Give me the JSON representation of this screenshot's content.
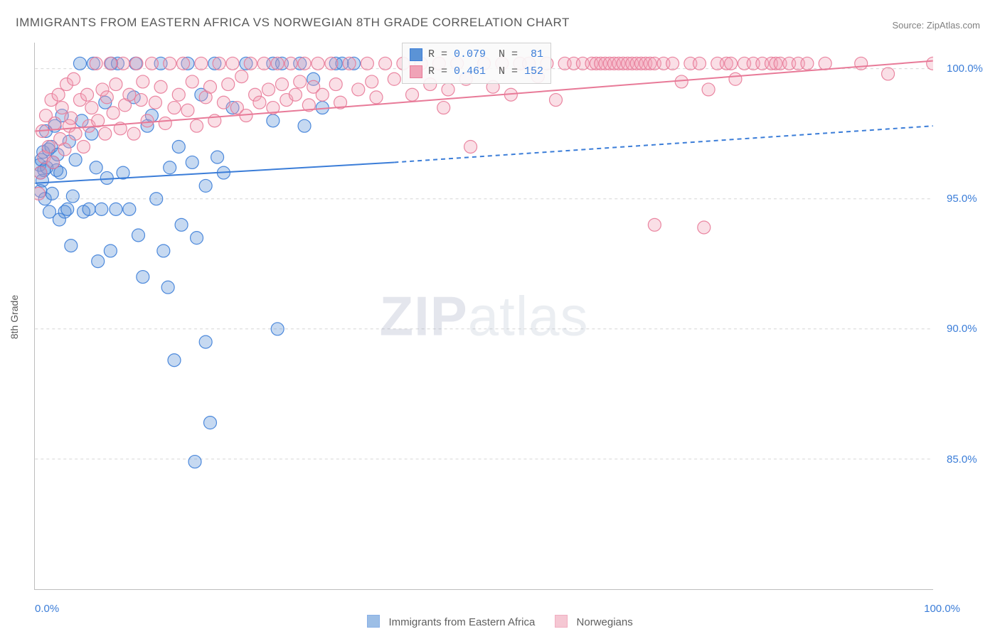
{
  "title": "IMMIGRANTS FROM EASTERN AFRICA VS NORWEGIAN 8TH GRADE CORRELATION CHART",
  "source": "Source: ZipAtlas.com",
  "ylabel": "8th Grade",
  "watermark_bold": "ZIP",
  "watermark_rest": "atlas",
  "chart": {
    "type": "scatter",
    "background_color": "#ffffff",
    "grid_color": "#d6d6d6",
    "axis_color": "#bdbdbd",
    "x_domain": [
      0,
      100
    ],
    "y_domain": [
      80,
      101
    ],
    "x_ticks": [
      0,
      8.7,
      17.8,
      26.7,
      35.6,
      44.5,
      53.3,
      62.2,
      71.1,
      80.0,
      88.9,
      100
    ],
    "y_ticks": [
      85.0,
      90.0,
      95.0,
      100.0
    ],
    "y_tick_labels": [
      "85.0%",
      "90.0%",
      "95.0%",
      "100.0%"
    ],
    "x_min_label": "0.0%",
    "x_max_label": "100.0%",
    "marker_radius": 9,
    "marker_fill_opacity": 0.35,
    "marker_stroke_opacity": 0.9,
    "marker_stroke_width": 1.2,
    "trend_line_width": 2,
    "series": [
      {
        "name": "Immigrants from Eastern Africa",
        "color": "#5b93d6",
        "stroke": "#3b7dd8",
        "R": "0.079",
        "N": "81",
        "trend": {
          "x1": 0,
          "y1": 95.6,
          "x2_solid": 40,
          "y2_solid": 96.4,
          "x2": 100,
          "y2": 97.8
        },
        "points": [
          [
            0.5,
            96.3
          ],
          [
            0.6,
            96.0
          ],
          [
            0.8,
            95.7
          ],
          [
            0.7,
            96.5
          ],
          [
            1.0,
            96.1
          ],
          [
            0.6,
            95.3
          ],
          [
            0.9,
            96.8
          ],
          [
            1.3,
            96.2
          ],
          [
            1.1,
            95.0
          ],
          [
            1.5,
            96.9
          ],
          [
            1.2,
            97.6
          ],
          [
            1.8,
            97.0
          ],
          [
            1.6,
            94.5
          ],
          [
            2.0,
            96.4
          ],
          [
            2.4,
            96.1
          ],
          [
            1.9,
            95.2
          ],
          [
            2.2,
            97.8
          ],
          [
            2.7,
            94.2
          ],
          [
            2.5,
            96.7
          ],
          [
            3.0,
            98.2
          ],
          [
            3.3,
            94.5
          ],
          [
            2.8,
            96.0
          ],
          [
            3.6,
            94.6
          ],
          [
            3.8,
            97.2
          ],
          [
            4.0,
            93.2
          ],
          [
            4.5,
            96.5
          ],
          [
            4.2,
            95.1
          ],
          [
            5.0,
            100.2
          ],
          [
            5.4,
            94.5
          ],
          [
            5.2,
            98.0
          ],
          [
            6.0,
            94.6
          ],
          [
            6.3,
            97.5
          ],
          [
            6.8,
            96.2
          ],
          [
            6.5,
            100.2
          ],
          [
            7.4,
            94.6
          ],
          [
            7.0,
            92.6
          ],
          [
            7.8,
            98.7
          ],
          [
            8.0,
            95.8
          ],
          [
            8.5,
            100.2
          ],
          [
            8.4,
            93.0
          ],
          [
            9.0,
            94.6
          ],
          [
            9.2,
            100.2
          ],
          [
            9.8,
            96.0
          ],
          [
            10.5,
            94.6
          ],
          [
            11.0,
            98.9
          ],
          [
            11.2,
            100.2
          ],
          [
            11.5,
            93.6
          ],
          [
            12.5,
            97.8
          ],
          [
            12.0,
            92.0
          ],
          [
            13.0,
            98.2
          ],
          [
            13.5,
            95.0
          ],
          [
            14.0,
            100.2
          ],
          [
            14.3,
            93.0
          ],
          [
            15.0,
            96.2
          ],
          [
            14.8,
            91.6
          ],
          [
            15.5,
            88.8
          ],
          [
            16.0,
            97.0
          ],
          [
            16.3,
            94.0
          ],
          [
            17.0,
            100.2
          ],
          [
            17.5,
            96.4
          ],
          [
            18.0,
            93.5
          ],
          [
            18.5,
            99.0
          ],
          [
            19.0,
            95.5
          ],
          [
            19.0,
            89.5
          ],
          [
            20.0,
            100.2
          ],
          [
            20.3,
            96.6
          ],
          [
            17.8,
            84.9
          ],
          [
            21.0,
            96.0
          ],
          [
            22.0,
            98.5
          ],
          [
            23.5,
            100.2
          ],
          [
            19.5,
            86.4
          ],
          [
            26.5,
            100.2
          ],
          [
            27.5,
            100.2
          ],
          [
            26.5,
            98.0
          ],
          [
            29.5,
            100.2
          ],
          [
            30.0,
            97.8
          ],
          [
            31.0,
            99.6
          ],
          [
            32.0,
            98.5
          ],
          [
            33.5,
            100.2
          ],
          [
            34.2,
            100.2
          ],
          [
            35.5,
            100.2
          ],
          [
            27.0,
            90.0
          ]
        ]
      },
      {
        "name": "Norwegians",
        "color": "#f0a3b7",
        "stroke": "#e87a98",
        "R": "0.461",
        "N": "152",
        "trend": {
          "x1": 0,
          "y1": 97.6,
          "x2_solid": 100,
          "y2_solid": 100.3,
          "x2": 100,
          "y2": 100.3
        },
        "points": [
          [
            0.4,
            95.2
          ],
          [
            0.6,
            96.0
          ],
          [
            0.8,
            97.6
          ],
          [
            1.0,
            96.6
          ],
          [
            1.2,
            98.2
          ],
          [
            1.5,
            97.0
          ],
          [
            1.8,
            98.8
          ],
          [
            2.0,
            96.4
          ],
          [
            2.2,
            97.9
          ],
          [
            2.6,
            99.0
          ],
          [
            2.8,
            97.3
          ],
          [
            3.0,
            98.5
          ],
          [
            3.3,
            96.9
          ],
          [
            3.5,
            99.4
          ],
          [
            3.8,
            97.8
          ],
          [
            4.0,
            98.1
          ],
          [
            4.3,
            99.6
          ],
          [
            4.5,
            97.5
          ],
          [
            5.0,
            98.8
          ],
          [
            5.4,
            97.0
          ],
          [
            5.8,
            99.0
          ],
          [
            6.0,
            97.8
          ],
          [
            6.3,
            98.5
          ],
          [
            6.8,
            100.2
          ],
          [
            7.0,
            98.0
          ],
          [
            7.5,
            99.2
          ],
          [
            7.8,
            97.5
          ],
          [
            8.0,
            98.9
          ],
          [
            8.4,
            100.2
          ],
          [
            8.7,
            98.3
          ],
          [
            9.0,
            99.4
          ],
          [
            9.5,
            97.7
          ],
          [
            9.8,
            100.2
          ],
          [
            10.0,
            98.6
          ],
          [
            10.5,
            99.0
          ],
          [
            11.0,
            97.5
          ],
          [
            11.3,
            100.2
          ],
          [
            11.8,
            98.8
          ],
          [
            12.0,
            99.5
          ],
          [
            12.5,
            98.0
          ],
          [
            13.0,
            100.2
          ],
          [
            13.4,
            98.7
          ],
          [
            14.0,
            99.3
          ],
          [
            14.5,
            97.9
          ],
          [
            15.0,
            100.2
          ],
          [
            15.5,
            98.5
          ],
          [
            16.0,
            99.0
          ],
          [
            16.5,
            100.2
          ],
          [
            17.0,
            98.4
          ],
          [
            17.5,
            99.5
          ],
          [
            18.0,
            97.8
          ],
          [
            18.5,
            100.2
          ],
          [
            19.0,
            98.9
          ],
          [
            19.5,
            99.3
          ],
          [
            20.0,
            98.0
          ],
          [
            20.5,
            100.2
          ],
          [
            21.0,
            98.7
          ],
          [
            21.5,
            99.4
          ],
          [
            22.0,
            100.2
          ],
          [
            22.5,
            98.5
          ],
          [
            23.0,
            99.7
          ],
          [
            23.5,
            98.2
          ],
          [
            24.0,
            100.2
          ],
          [
            24.5,
            99.0
          ],
          [
            25.0,
            98.7
          ],
          [
            25.5,
            100.2
          ],
          [
            26.0,
            99.2
          ],
          [
            26.5,
            98.5
          ],
          [
            27.0,
            100.2
          ],
          [
            27.5,
            99.4
          ],
          [
            28.0,
            98.8
          ],
          [
            28.5,
            100.2
          ],
          [
            29.0,
            99.0
          ],
          [
            29.5,
            99.5
          ],
          [
            30.0,
            100.2
          ],
          [
            30.5,
            98.6
          ],
          [
            31.0,
            99.3
          ],
          [
            31.5,
            100.2
          ],
          [
            32.0,
            99.0
          ],
          [
            33.0,
            100.2
          ],
          [
            33.5,
            99.4
          ],
          [
            34.0,
            98.7
          ],
          [
            35.0,
            100.2
          ],
          [
            36.0,
            99.2
          ],
          [
            37.0,
            100.2
          ],
          [
            37.5,
            99.5
          ],
          [
            38.0,
            98.9
          ],
          [
            39.0,
            100.2
          ],
          [
            40.0,
            99.6
          ],
          [
            41.0,
            100.2
          ],
          [
            42.0,
            99.0
          ],
          [
            43.0,
            100.2
          ],
          [
            44.0,
            99.4
          ],
          [
            45.0,
            100.2
          ],
          [
            45.5,
            98.5
          ],
          [
            46.0,
            99.2
          ],
          [
            47.0,
            100.2
          ],
          [
            48.0,
            99.6
          ],
          [
            48.5,
            97.0
          ],
          [
            50.0,
            100.2
          ],
          [
            51.0,
            99.3
          ],
          [
            52.0,
            100.2
          ],
          [
            53.0,
            99.0
          ],
          [
            54.0,
            100.2
          ],
          [
            55.0,
            100.2
          ],
          [
            56.0,
            99.7
          ],
          [
            57.0,
            100.2
          ],
          [
            58.0,
            98.8
          ],
          [
            59.0,
            100.2
          ],
          [
            60.0,
            100.2
          ],
          [
            61.0,
            100.2
          ],
          [
            62.0,
            100.2
          ],
          [
            62.5,
            100.2
          ],
          [
            63.0,
            100.2
          ],
          [
            63.5,
            100.2
          ],
          [
            64.0,
            100.2
          ],
          [
            64.5,
            100.2
          ],
          [
            65.0,
            100.2
          ],
          [
            65.5,
            100.2
          ],
          [
            66.0,
            100.2
          ],
          [
            66.5,
            100.2
          ],
          [
            67.0,
            100.2
          ],
          [
            67.5,
            100.2
          ],
          [
            68.0,
            100.2
          ],
          [
            68.5,
            100.2
          ],
          [
            69.0,
            100.2
          ],
          [
            70.0,
            100.2
          ],
          [
            71.0,
            100.2
          ],
          [
            72.0,
            99.5
          ],
          [
            73.0,
            100.2
          ],
          [
            74.0,
            100.2
          ],
          [
            75.0,
            99.2
          ],
          [
            76.0,
            100.2
          ],
          [
            77.0,
            100.2
          ],
          [
            77.5,
            100.2
          ],
          [
            78.0,
            99.6
          ],
          [
            79.0,
            100.2
          ],
          [
            80.0,
            100.2
          ],
          [
            81.0,
            100.2
          ],
          [
            82.0,
            100.2
          ],
          [
            82.5,
            100.2
          ],
          [
            83.0,
            100.2
          ],
          [
            84.0,
            100.2
          ],
          [
            85.0,
            100.2
          ],
          [
            86.0,
            100.2
          ],
          [
            88.0,
            100.2
          ],
          [
            69.0,
            94.0
          ],
          [
            74.5,
            93.9
          ],
          [
            92.0,
            100.2
          ],
          [
            95.0,
            99.8
          ],
          [
            100.0,
            100.2
          ]
        ]
      }
    ]
  }
}
